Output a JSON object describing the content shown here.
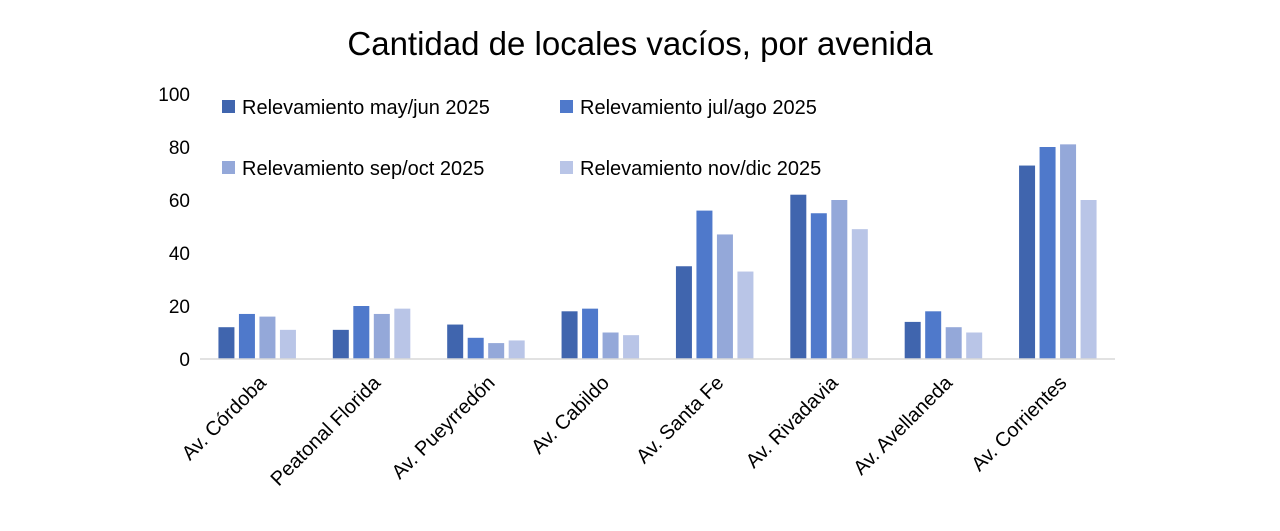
{
  "chart_data": {
    "type": "bar",
    "title": "Cantidad de locales vacíos, por avenida",
    "xlabel": "",
    "ylabel": "",
    "ylim": [
      0,
      100
    ],
    "yticks": [
      0,
      20,
      40,
      60,
      80,
      100
    ],
    "grid": false,
    "legend_position": "top",
    "categories": [
      "Av. Córdoba",
      "Peatonal Florida",
      "Av. Pueyrredón",
      "Av. Cabildo",
      "Av. Santa Fe",
      "Av. Rivadavia",
      "Av. Avellaneda",
      "Av. Corrientes"
    ],
    "series": [
      {
        "name": "Relevamiento may/jun 2025",
        "color": "#4065AE",
        "values": [
          12,
          11,
          13,
          18,
          35,
          62,
          14,
          73
        ]
      },
      {
        "name": "Relevamiento jul/ago 2025",
        "color": "#4F79CB",
        "values": [
          17,
          20,
          8,
          19,
          56,
          55,
          18,
          80
        ]
      },
      {
        "name": "Relevamiento sep/oct 2025",
        "color": "#94A8D9",
        "values": [
          16,
          17,
          6,
          10,
          47,
          60,
          12,
          81
        ]
      },
      {
        "name": "Relevamiento nov/dic 2025",
        "color": "#B9C5E7",
        "values": [
          11,
          19,
          7,
          9,
          33,
          49,
          10,
          60
        ]
      }
    ]
  }
}
